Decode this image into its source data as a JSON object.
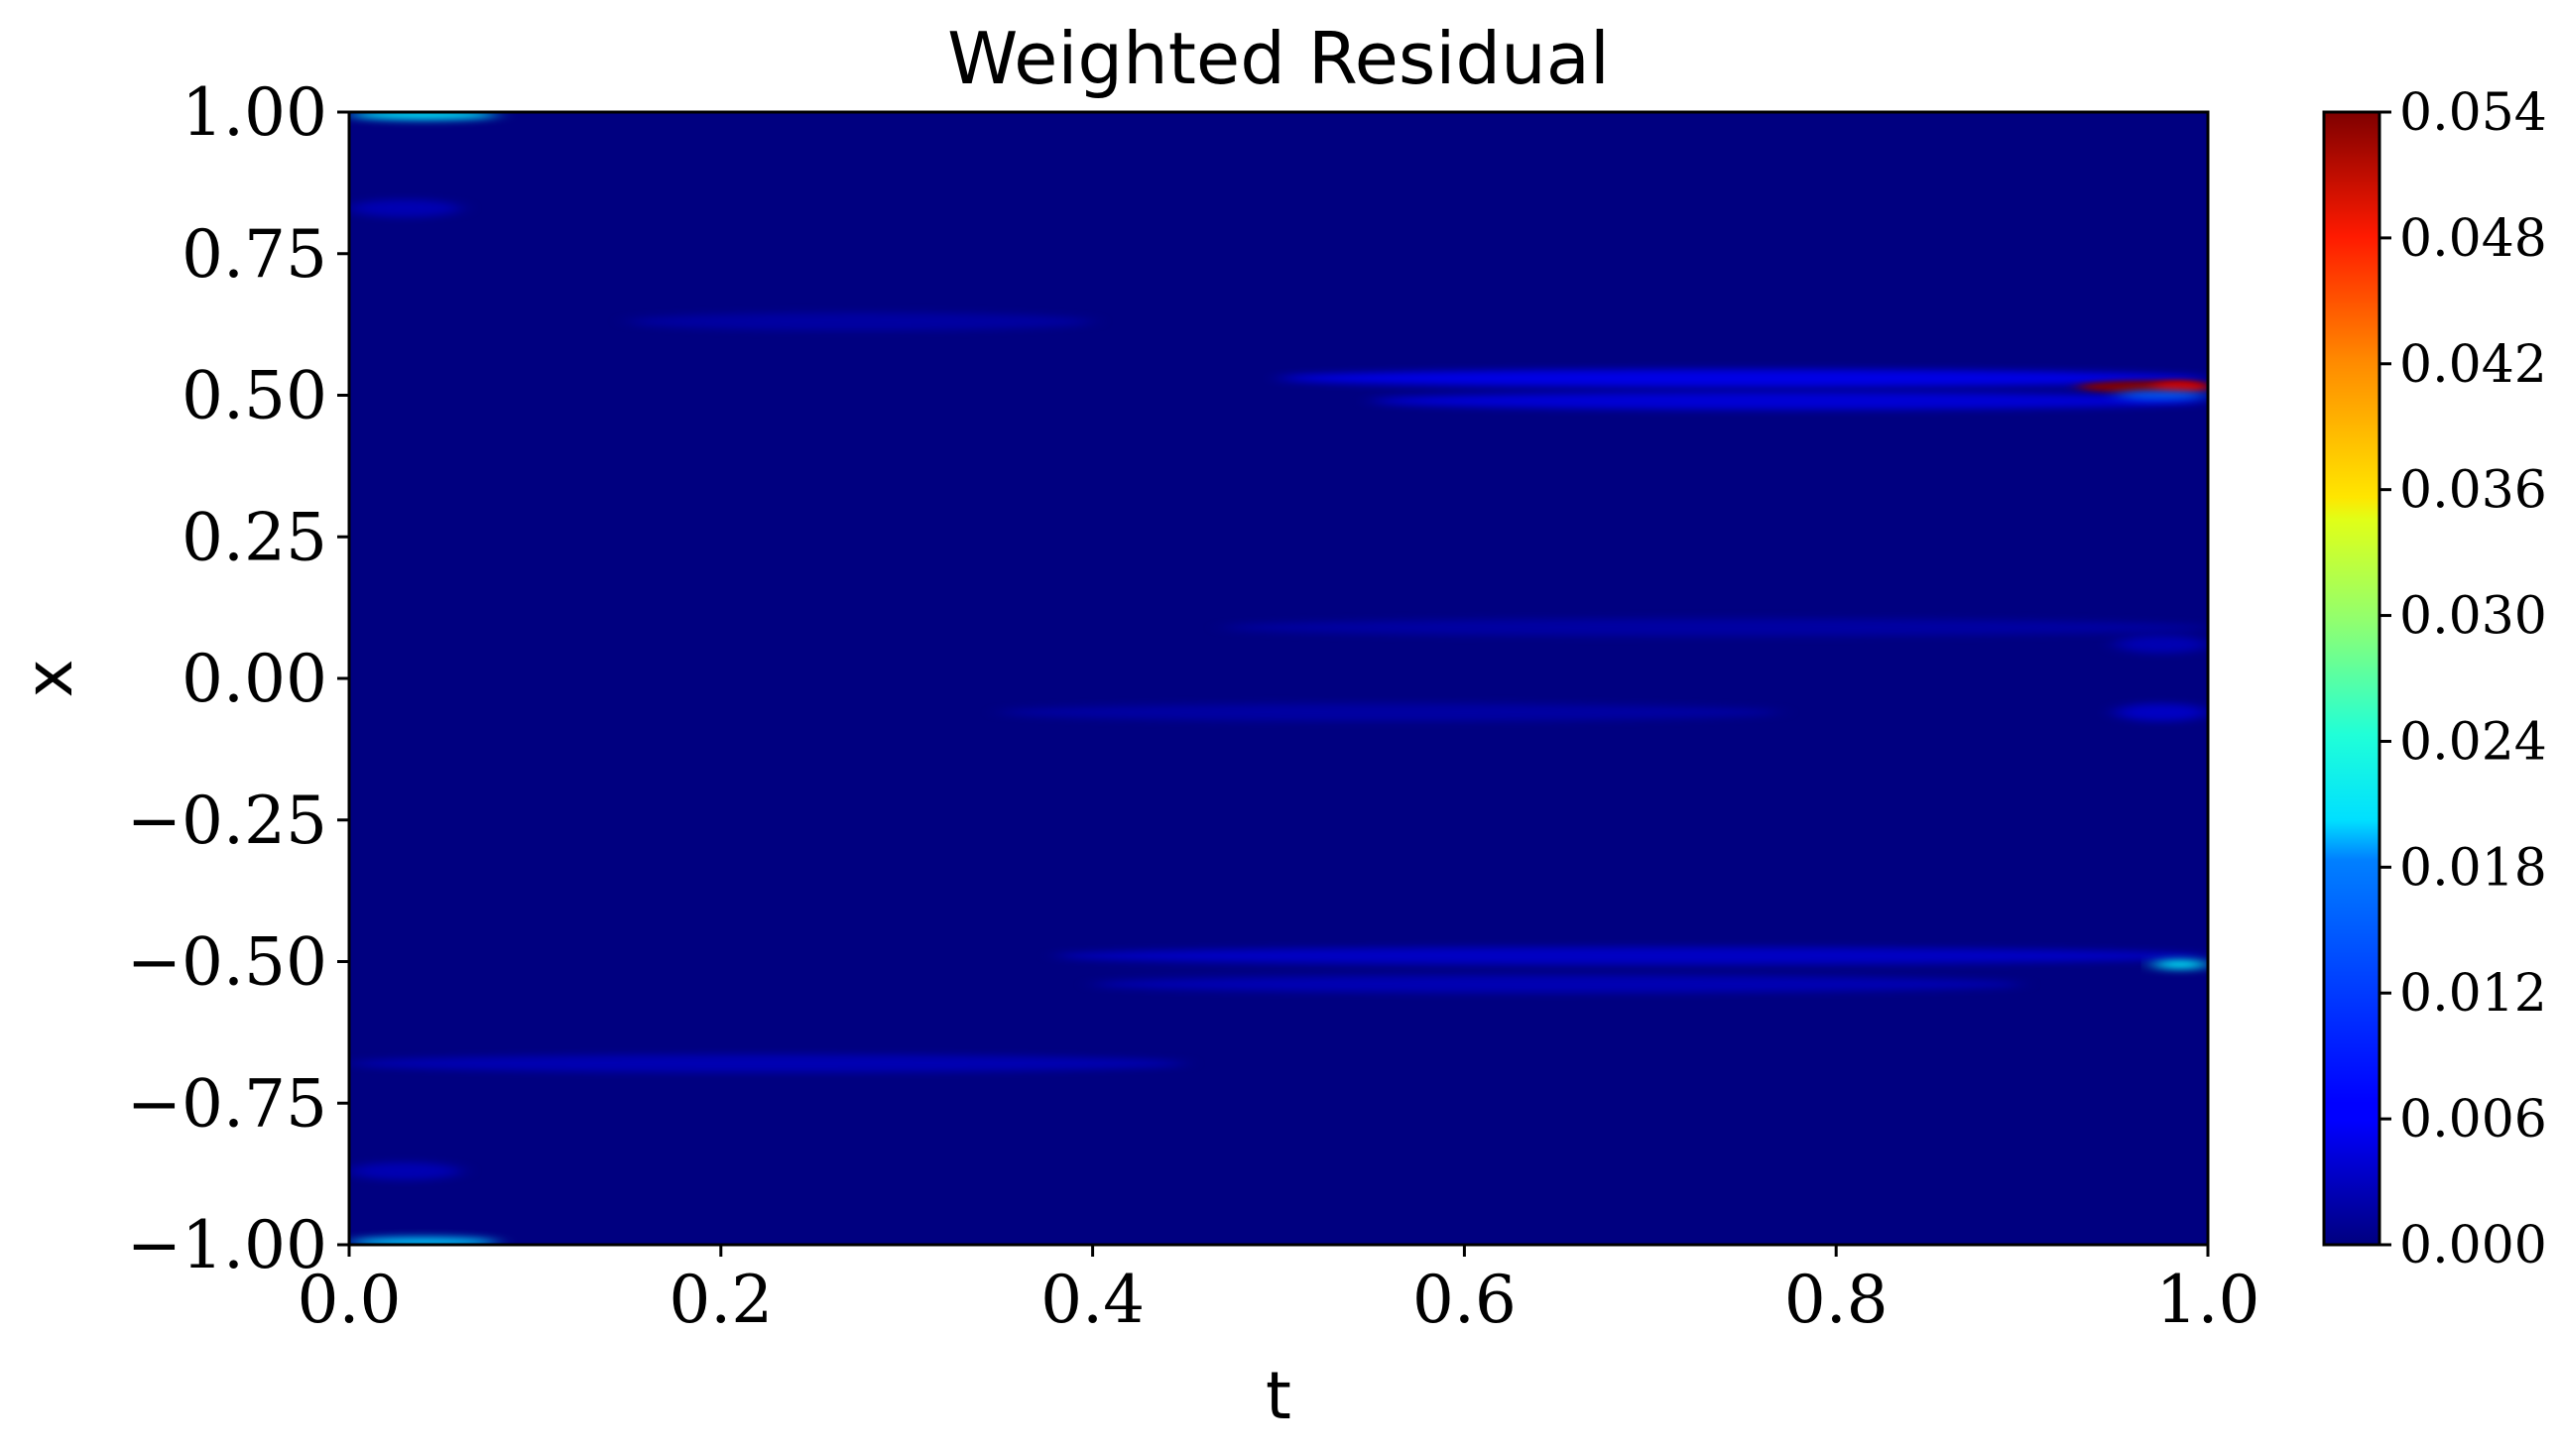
{
  "chart_data": {
    "type": "heatmap",
    "title": "Weighted Residual",
    "xlabel": "t",
    "ylabel": "x",
    "xlim": [
      0.0,
      1.0
    ],
    "ylim": [
      -1.0,
      1.0
    ],
    "x_ticks": [
      {
        "value": 0.0,
        "label": "0.0"
      },
      {
        "value": 0.2,
        "label": "0.2"
      },
      {
        "value": 0.4,
        "label": "0.4"
      },
      {
        "value": 0.6,
        "label": "0.6"
      },
      {
        "value": 0.8,
        "label": "0.8"
      },
      {
        "value": 1.0,
        "label": "1.0"
      }
    ],
    "y_ticks": [
      {
        "value": 1.0,
        "label": "1.00"
      },
      {
        "value": 0.75,
        "label": "0.75"
      },
      {
        "value": 0.5,
        "label": "0.50"
      },
      {
        "value": 0.25,
        "label": "0.25"
      },
      {
        "value": 0.0,
        "label": "0.00"
      },
      {
        "value": -0.25,
        "label": "−0.25"
      },
      {
        "value": -0.5,
        "label": "−0.50"
      },
      {
        "value": -0.75,
        "label": "−0.75"
      },
      {
        "value": -1.0,
        "label": "−1.00"
      }
    ],
    "colormap": "jet",
    "background_color": "#00008b",
    "colorbar": {
      "min": 0.0,
      "max": 0.054,
      "ticks": [
        {
          "value": 0.0,
          "label": "0.000"
        },
        {
          "value": 0.006,
          "label": "0.006"
        },
        {
          "value": 0.012,
          "label": "0.012"
        },
        {
          "value": 0.018,
          "label": "0.018"
        },
        {
          "value": 0.024,
          "label": "0.024"
        },
        {
          "value": 0.03,
          "label": "0.030"
        },
        {
          "value": 0.036,
          "label": "0.036"
        },
        {
          "value": 0.042,
          "label": "0.042"
        },
        {
          "value": 0.048,
          "label": "0.048"
        },
        {
          "value": 0.054,
          "label": "0.054"
        }
      ]
    },
    "features": [
      {
        "t_start": 0.0,
        "t_end": 0.08,
        "x": 0.995,
        "value": 0.02
      },
      {
        "t_start": 0.0,
        "t_end": 0.08,
        "x": -0.995,
        "value": 0.018
      },
      {
        "t_start": 0.5,
        "t_end": 1.0,
        "x": 0.53,
        "value": 0.006
      },
      {
        "t_start": 0.55,
        "t_end": 1.0,
        "x": 0.49,
        "value": 0.005
      },
      {
        "t_start": 0.93,
        "t_end": 1.0,
        "x": 0.515,
        "value": 0.054
      },
      {
        "t_start": 0.97,
        "t_end": 1.0,
        "x": 0.515,
        "value": 0.05
      },
      {
        "t_start": 0.95,
        "t_end": 1.0,
        "x": 0.5,
        "value": 0.012
      },
      {
        "t_start": 0.38,
        "t_end": 1.0,
        "x": -0.49,
        "value": 0.004
      },
      {
        "t_start": 0.4,
        "t_end": 0.9,
        "x": -0.54,
        "value": 0.003
      },
      {
        "t_start": 0.97,
        "t_end": 1.0,
        "x": -0.505,
        "value": 0.02
      },
      {
        "t_start": 0.0,
        "t_end": 0.45,
        "x": -0.68,
        "value": 0.003
      },
      {
        "t_start": 0.0,
        "t_end": 0.06,
        "x": 0.83,
        "value": 0.003
      },
      {
        "t_start": 0.0,
        "t_end": 0.06,
        "x": -0.87,
        "value": 0.003
      },
      {
        "t_start": 0.35,
        "t_end": 0.77,
        "x": -0.06,
        "value": 0.002
      },
      {
        "t_start": 0.47,
        "t_end": 1.0,
        "x": 0.09,
        "value": 0.002
      },
      {
        "t_start": 0.15,
        "t_end": 0.4,
        "x": 0.63,
        "value": 0.002
      },
      {
        "t_start": 0.95,
        "t_end": 1.0,
        "x": -0.06,
        "value": 0.004
      },
      {
        "t_start": 0.95,
        "t_end": 1.0,
        "x": 0.06,
        "value": 0.003
      }
    ]
  }
}
